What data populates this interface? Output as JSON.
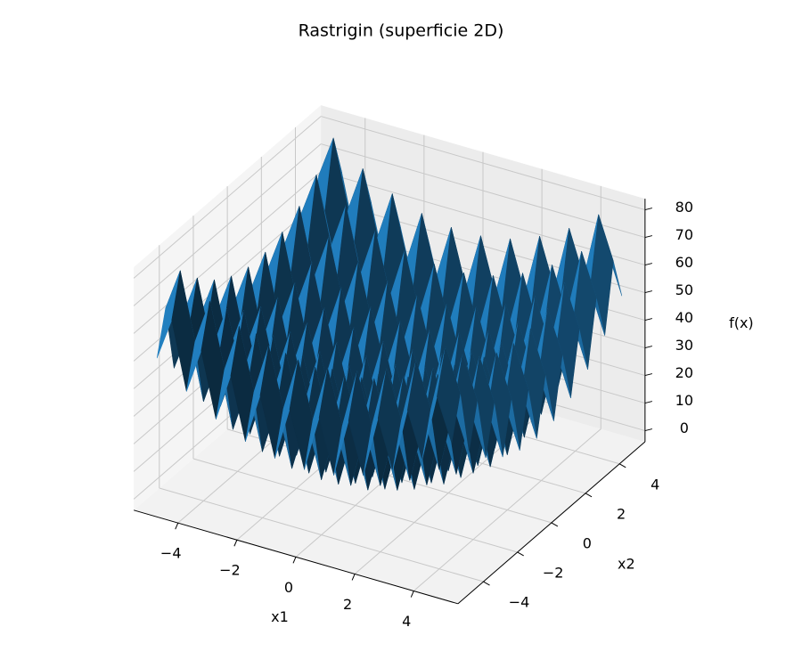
{
  "chart_data": {
    "type": "surface",
    "title": "Rastrigin (superficie 2D)",
    "xlabel": "x1",
    "ylabel": "x2",
    "zlabel": "f(x)",
    "color": "#1f77b4",
    "xlim": [
      -5.5,
      5.5
    ],
    "ylim": [
      -5.5,
      5.5
    ],
    "zlim": [
      -4,
      84
    ],
    "xticks": [
      {
        "value": -4,
        "label": "−4"
      },
      {
        "value": -2,
        "label": "−2"
      },
      0,
      2,
      4
    ],
    "yticks": [
      {
        "value": -4,
        "label": "−4"
      },
      {
        "value": -2,
        "label": "−2"
      },
      0,
      2,
      4
    ],
    "zticks": [
      0,
      10,
      20,
      30,
      40,
      50,
      60,
      70,
      80
    ],
    "x": [
      -5,
      -4.5,
      -4,
      -3.5,
      -3,
      -2.5,
      -2,
      -1.5,
      -1,
      -0.5,
      0,
      0.5,
      1,
      1.5,
      2,
      2.5,
      3,
      3.5,
      4,
      4.5,
      5
    ],
    "y": [
      -5,
      -4.5,
      -4,
      -3.5,
      -3,
      -2.5,
      -2,
      -1.5,
      -1,
      -0.5,
      0,
      0.5,
      1,
      1.5,
      2,
      2.5,
      3,
      3.5,
      4,
      4.5,
      5
    ],
    "z": [
      [
        50,
        65.25,
        41,
        57.25,
        34,
        51.25,
        29,
        47.25,
        26,
        45.25,
        25,
        45.25,
        26,
        47.25,
        29,
        51.25,
        34,
        57.25,
        41,
        65.25,
        50
      ],
      [
        65.25,
        80.5,
        56.25,
        72.5,
        49.25,
        66.5,
        44.25,
        62.5,
        41.25,
        60.5,
        40.25,
        60.5,
        41.25,
        62.5,
        44.25,
        66.5,
        49.25,
        72.5,
        56.25,
        80.5,
        65.25
      ],
      [
        41,
        56.25,
        32,
        48.25,
        25,
        42.25,
        20,
        38.25,
        17,
        36.25,
        16,
        36.25,
        17,
        38.25,
        20,
        42.25,
        25,
        48.25,
        32,
        56.25,
        41
      ],
      [
        57.25,
        72.5,
        48.25,
        64.5,
        41.25,
        58.5,
        36.25,
        54.5,
        33.25,
        52.5,
        32.25,
        52.5,
        33.25,
        54.5,
        36.25,
        58.5,
        41.25,
        64.5,
        48.25,
        72.5,
        57.25
      ],
      [
        34,
        49.25,
        25,
        41.25,
        18,
        35.25,
        13,
        31.25,
        10,
        29.25,
        9,
        29.25,
        10,
        31.25,
        13,
        35.25,
        18,
        41.25,
        25,
        49.25,
        34
      ],
      [
        51.25,
        66.5,
        42.25,
        58.5,
        35.25,
        52.5,
        30.25,
        48.5,
        27.25,
        46.5,
        26.25,
        46.5,
        27.25,
        48.5,
        30.25,
        52.5,
        35.25,
        58.5,
        42.25,
        66.5,
        51.25
      ],
      [
        29,
        44.25,
        20,
        36.25,
        13,
        30.25,
        8,
        26.25,
        5,
        24.25,
        4,
        24.25,
        5,
        26.25,
        8,
        30.25,
        13,
        36.25,
        20,
        44.25,
        29
      ],
      [
        47.25,
        62.5,
        38.25,
        54.5,
        31.25,
        48.5,
        26.25,
        44.5,
        23.25,
        42.5,
        22.25,
        42.5,
        23.25,
        44.5,
        26.25,
        48.5,
        31.25,
        54.5,
        38.25,
        62.5,
        47.25
      ],
      [
        26,
        41.25,
        17,
        33.25,
        10,
        27.25,
        5,
        23.25,
        2,
        21.25,
        1,
        21.25,
        2,
        23.25,
        5,
        27.25,
        10,
        33.25,
        17,
        41.25,
        26
      ],
      [
        45.25,
        60.5,
        36.25,
        52.5,
        29.25,
        46.5,
        24.25,
        42.5,
        21.25,
        40.5,
        20.25,
        40.5,
        21.25,
        42.5,
        24.25,
        46.5,
        29.25,
        52.5,
        36.25,
        60.5,
        45.25
      ],
      [
        25,
        40.25,
        16,
        32.25,
        9,
        26.25,
        4,
        22.25,
        1,
        20.25,
        0,
        20.25,
        1,
        22.25,
        4,
        26.25,
        9,
        32.25,
        16,
        40.25,
        25
      ],
      [
        45.25,
        60.5,
        36.25,
        52.5,
        29.25,
        46.5,
        24.25,
        42.5,
        21.25,
        40.5,
        20.25,
        40.5,
        21.25,
        42.5,
        24.25,
        46.5,
        29.25,
        52.5,
        36.25,
        60.5,
        45.25
      ],
      [
        26,
        41.25,
        17,
        33.25,
        10,
        27.25,
        5,
        23.25,
        2,
        21.25,
        1,
        21.25,
        2,
        23.25,
        5,
        27.25,
        10,
        33.25,
        17,
        41.25,
        26
      ],
      [
        47.25,
        62.5,
        38.25,
        54.5,
        31.25,
        48.5,
        26.25,
        44.5,
        23.25,
        42.5,
        22.25,
        42.5,
        23.25,
        44.5,
        26.25,
        48.5,
        31.25,
        54.5,
        38.25,
        62.5,
        47.25
      ],
      [
        29,
        44.25,
        20,
        36.25,
        13,
        30.25,
        8,
        26.25,
        5,
        24.25,
        4,
        24.25,
        5,
        26.25,
        8,
        30.25,
        13,
        36.25,
        20,
        44.25,
        29
      ],
      [
        51.25,
        66.5,
        42.25,
        58.5,
        35.25,
        52.5,
        30.25,
        48.5,
        27.25,
        46.5,
        26.25,
        46.5,
        27.25,
        48.5,
        30.25,
        52.5,
        35.25,
        58.5,
        42.25,
        66.5,
        51.25
      ],
      [
        34,
        49.25,
        25,
        41.25,
        18,
        35.25,
        13,
        31.25,
        10,
        29.25,
        9,
        29.25,
        10,
        31.25,
        13,
        35.25,
        18,
        41.25,
        25,
        49.25,
        34
      ],
      [
        57.25,
        72.5,
        48.25,
        64.5,
        41.25,
        58.5,
        36.25,
        54.5,
        33.25,
        52.5,
        32.25,
        52.5,
        33.25,
        54.5,
        36.25,
        58.5,
        41.25,
        64.5,
        48.25,
        72.5,
        57.25
      ],
      [
        41,
        56.25,
        32,
        48.25,
        25,
        42.25,
        20,
        38.25,
        17,
        36.25,
        16,
        36.25,
        17,
        38.25,
        20,
        42.25,
        25,
        48.25,
        32,
        56.25,
        41
      ],
      [
        65.25,
        80.5,
        56.25,
        72.5,
        49.25,
        66.5,
        44.25,
        62.5,
        41.25,
        60.5,
        40.25,
        60.5,
        41.25,
        62.5,
        44.25,
        66.5,
        49.25,
        72.5,
        56.25,
        80.5,
        65.25
      ],
      [
        50,
        65.25,
        41,
        57.25,
        34,
        51.25,
        29,
        47.25,
        26,
        45.25,
        25,
        45.25,
        26,
        47.25,
        29,
        51.25,
        34,
        57.25,
        41,
        65.25,
        50
      ]
    ]
  }
}
